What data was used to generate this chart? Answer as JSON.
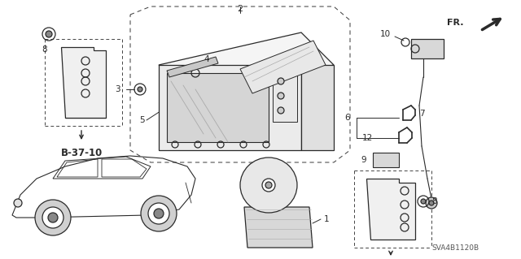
{
  "bg_color": "#ffffff",
  "line_color": "#2a2a2a",
  "dashed_color": "#444444",
  "diagram_ref": "SVA4B1120B",
  "figsize": [
    6.4,
    3.19
  ],
  "dpi": 100,
  "lw_main": 0.9,
  "lw_thin": 0.6,
  "fs_label": 7.5,
  "fs_bold": 8.5
}
